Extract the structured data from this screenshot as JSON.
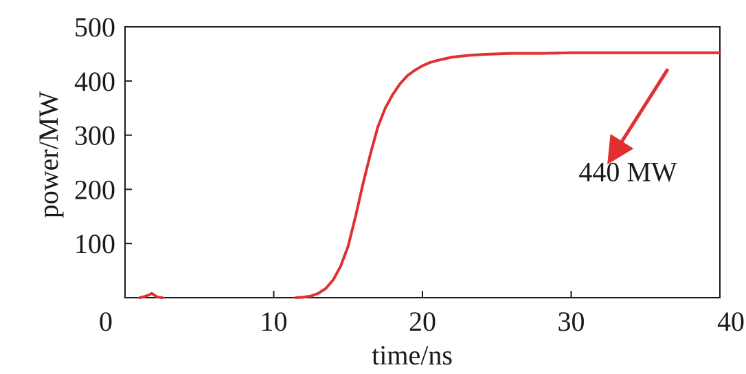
{
  "chart_data": {
    "type": "line",
    "xlabel": "time/ns",
    "ylabel": "power/MW",
    "xlim": [
      0,
      40
    ],
    "ylim": [
      0,
      500
    ],
    "xticks": [
      0,
      10,
      20,
      30,
      40
    ],
    "xtick_labels": [
      "0",
      "10",
      "20",
      "30",
      "40"
    ],
    "yticks": [
      100,
      200,
      300,
      400,
      500
    ],
    "ytick_labels": [
      "100",
      "200",
      "300",
      "400",
      "500"
    ],
    "grid": false,
    "legend": "none",
    "series": [
      {
        "color": "#e03030",
        "x": [
          1.0,
          1.3,
          1.6,
          1.8,
          2.0,
          2.2,
          2.5,
          11.5,
          12.0,
          12.5,
          13.0,
          13.5,
          14.0,
          14.5,
          15.0,
          15.5,
          16.0,
          16.5,
          17.0,
          17.5,
          18.0,
          18.5,
          19.0,
          19.5,
          20.0,
          20.5,
          21.0,
          21.5,
          22.0,
          23.0,
          24.0,
          25.0,
          26.0,
          28.0,
          30.0,
          33.0,
          36.0,
          40.0
        ],
        "y": [
          0,
          2,
          5,
          8,
          4,
          1,
          0,
          0,
          1,
          3,
          8,
          17,
          33,
          58,
          95,
          150,
          210,
          265,
          315,
          350,
          375,
          395,
          410,
          420,
          428,
          434,
          438,
          441,
          444,
          447,
          449,
          450,
          451,
          451,
          452,
          452,
          452,
          452
        ]
      }
    ],
    "annotations": [
      {
        "text": "440 MW",
        "x": 30.5,
        "y": 215,
        "arrow_from": [
          36.5,
          422
        ],
        "arrow_to": [
          32.8,
          262
        ]
      }
    ]
  }
}
